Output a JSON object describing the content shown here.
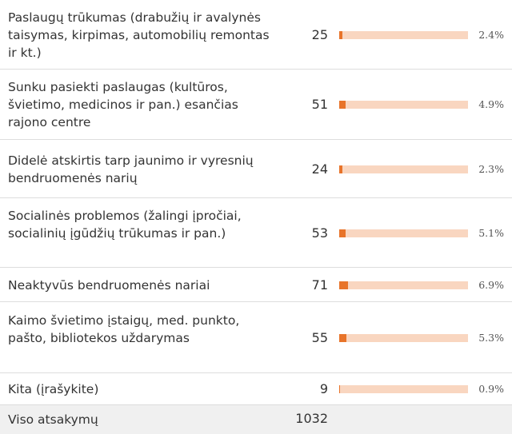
{
  "table": {
    "rows": [
      {
        "label": "Paslaugų trūkumas (drabužių ir avalynės taisymas, kirpimas, automobilių remontas ir kt.)",
        "count": 25,
        "percent": 2.4,
        "percent_label": "2.4%"
      },
      {
        "label": "Sunku pasiekti paslaugas (kultūros, švietimo, medicinos ir pan.) esančias rajono centre",
        "count": 51,
        "percent": 4.9,
        "percent_label": "4.9%"
      },
      {
        "label": "Didelė atskirtis tarp jaunimo ir vyresnių bendruomenės narių",
        "count": 24,
        "percent": 2.3,
        "percent_label": "2.3%"
      },
      {
        "label": "Socialinės problemos (žalingi įpročiai, socialinių įgūdžių trūkumas ir pan.)",
        "count": 53,
        "percent": 5.1,
        "percent_label": "5.1%"
      },
      {
        "label": "Neaktyvūs bendruomenės nariai",
        "count": 71,
        "percent": 6.9,
        "percent_label": "6.9%"
      },
      {
        "label": "Kaimo švietimo įstaigų, med. punkto, pašto, bibliotekos uždarymas",
        "count": 55,
        "percent": 5.3,
        "percent_label": "5.3%"
      },
      {
        "label": "Kita (įrašykite)",
        "count": 9,
        "percent": 0.9,
        "percent_label": "0.9%"
      }
    ],
    "total": {
      "label": "Viso atsakymų",
      "count": 1032
    }
  }
}
